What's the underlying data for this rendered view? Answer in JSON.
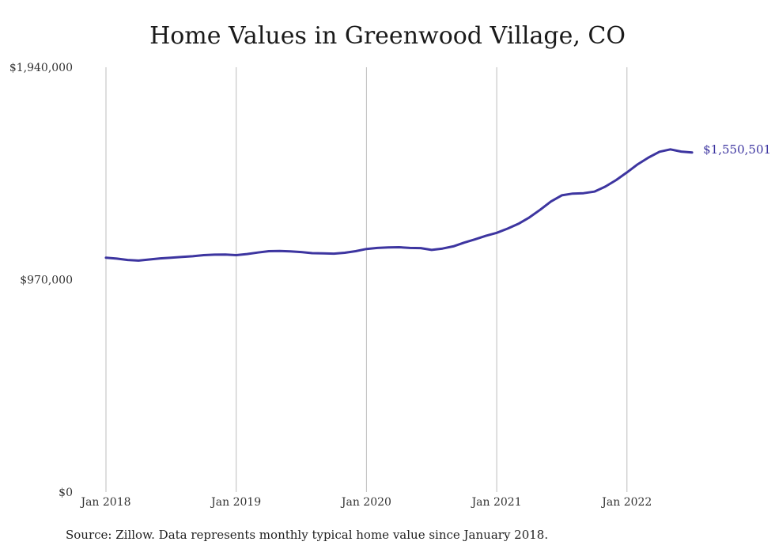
{
  "chart_data": {
    "type": "line",
    "title": "Home Values in Greenwood Village, CO",
    "source": "Source: Zillow. Data represents monthly typical home value since January 2018.",
    "xlabel": "",
    "ylabel": "",
    "x_start": "2018-01",
    "x_ticks": [
      "Jan 2018",
      "Jan 2019",
      "Jan 2020",
      "Jan 2021",
      "Jan 2022"
    ],
    "y_ticks": [
      "$0",
      "$970,000",
      "$1,940,000"
    ],
    "ylim": [
      0,
      1940000
    ],
    "grid": "vertical",
    "line_color": "#3d35a0",
    "end_label": "$1,550,501",
    "series": [
      {
        "x": [
          "2018-01",
          "2018-02",
          "2018-03",
          "2018-04",
          "2018-05",
          "2018-06",
          "2018-07",
          "2018-08",
          "2018-09",
          "2018-10",
          "2018-11",
          "2018-12",
          "2019-01",
          "2019-02",
          "2019-03",
          "2019-04",
          "2019-05",
          "2019-06",
          "2019-07",
          "2019-08",
          "2019-09",
          "2019-10",
          "2019-11",
          "2019-12",
          "2020-01",
          "2020-02",
          "2020-03",
          "2020-04",
          "2020-05",
          "2020-06",
          "2020-07",
          "2020-08",
          "2020-09",
          "2020-10",
          "2020-11",
          "2020-12",
          "2021-01",
          "2021-02",
          "2021-03",
          "2021-04",
          "2021-05",
          "2021-06",
          "2021-07",
          "2021-08",
          "2021-09",
          "2021-10",
          "2021-11",
          "2021-12",
          "2022-01",
          "2022-02",
          "2022-03",
          "2022-04",
          "2022-05",
          "2022-06",
          "2022-07"
        ],
        "values": [
          1070000,
          1066000,
          1060000,
          1057000,
          1062000,
          1067000,
          1070000,
          1074000,
          1077000,
          1082000,
          1084000,
          1085000,
          1082000,
          1087000,
          1094000,
          1100000,
          1101000,
          1099000,
          1096000,
          1091000,
          1090000,
          1089000,
          1093000,
          1100000,
          1110000,
          1115000,
          1117000,
          1118000,
          1115000,
          1114000,
          1106000,
          1112000,
          1122000,
          1139000,
          1154000,
          1170000,
          1184000,
          1203000,
          1225000,
          1254000,
          1289000,
          1327000,
          1355000,
          1363000,
          1365000,
          1372000,
          1395000,
          1425000,
          1460000,
          1497000,
          1528000,
          1554000,
          1565000,
          1555000,
          1550501
        ]
      }
    ]
  }
}
